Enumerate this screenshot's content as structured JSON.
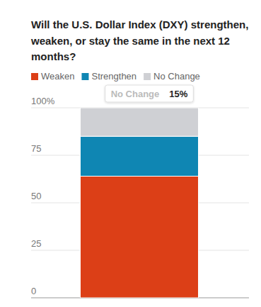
{
  "chart_data": {
    "type": "bar",
    "stacked": true,
    "title": "Will the U.S. Dollar Index (DXY) strengthen, weaken, or stay the same in the next 12 months?",
    "categories": [
      null
    ],
    "series": [
      {
        "name": "Weaken",
        "color": "#dc3f17",
        "values": [
          64
        ]
      },
      {
        "name": "Strengthen",
        "color": "#0f86b3",
        "values": [
          21
        ]
      },
      {
        "name": "No Change",
        "color": "#cfd0d4",
        "values": [
          15
        ],
        "value_labels": [
          "15%"
        ]
      }
    ],
    "ylim": [
      0,
      100
    ],
    "yticks": [
      0,
      25,
      50,
      75,
      {
        "value": 100,
        "label": "100%"
      }
    ],
    "grid": true
  }
}
